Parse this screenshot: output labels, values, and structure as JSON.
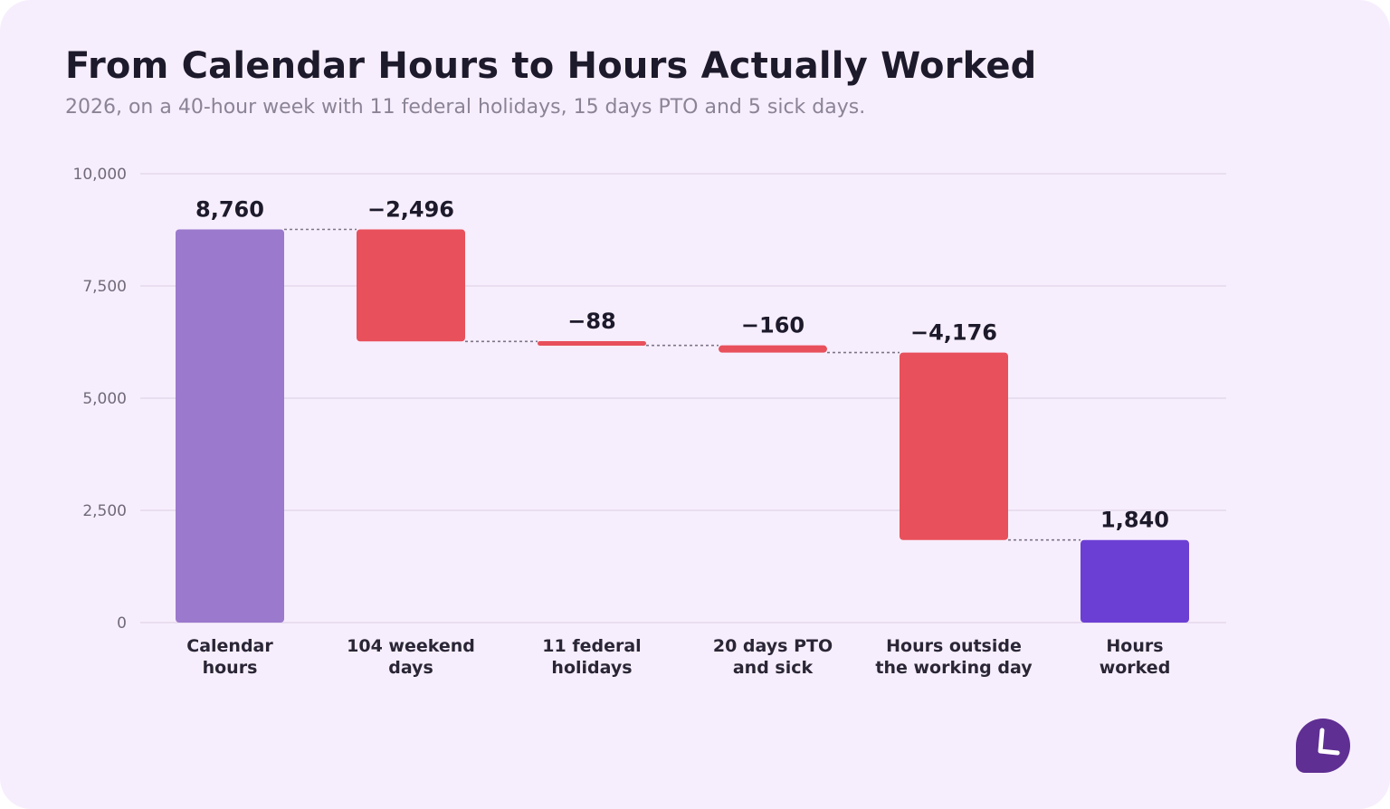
{
  "header": {
    "title": "From Calendar Hours to Hours Actually Worked",
    "subtitle": "2026, on a 40-hour week with 11 federal holidays, 15 days PTO and 5 sick days."
  },
  "chart_data": {
    "type": "bar",
    "variant": "waterfall",
    "categories": [
      [
        "Calendar",
        "hours"
      ],
      [
        "104 weekend",
        "days"
      ],
      [
        "11 federal",
        "holidays"
      ],
      [
        "20 days PTO",
        "and sick"
      ],
      [
        "Hours outside",
        "the working day"
      ],
      [
        "Hours",
        "worked"
      ]
    ],
    "values": [
      8760,
      -2496,
      -88,
      -160,
      -4176,
      1840
    ],
    "value_labels": [
      "8,760",
      "−2,496",
      "−88",
      "−160",
      "−4,176",
      "1,840"
    ],
    "kinds": [
      "total",
      "delta",
      "delta",
      "delta",
      "delta",
      "total"
    ],
    "ylim": [
      0,
      10000
    ],
    "yticks": [
      0,
      2500,
      5000,
      7500,
      10000
    ],
    "ytick_labels": [
      "0",
      "2,500",
      "5,000",
      "7,500",
      "10,000"
    ],
    "grid": true,
    "connectors": true,
    "colors": {
      "start_total": "#9b79cc",
      "end_total": "#6c3fd4",
      "decrease": "#e8505b",
      "grid": "#e3d9ec",
      "connector": "#7d7689"
    }
  },
  "logo": {
    "icon": "clock-logo-icon",
    "color": "#5f2f93"
  }
}
